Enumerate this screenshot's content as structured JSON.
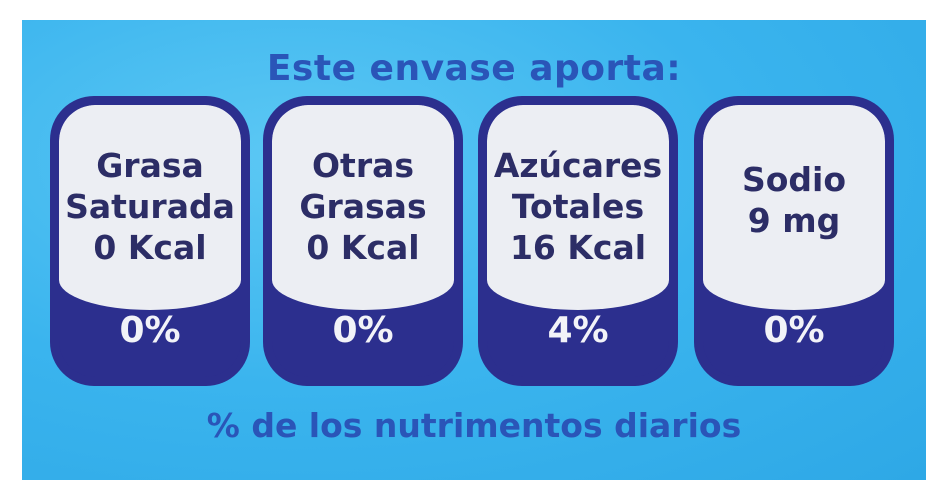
{
  "title": "Este envase aporta:",
  "cards": [
    {
      "lines": [
        "Grasa",
        "Saturada",
        "0 Kcal"
      ],
      "percent": "0%"
    },
    {
      "lines": [
        "Otras",
        "Grasas",
        "0 Kcal"
      ],
      "percent": "0%"
    },
    {
      "lines": [
        "Azúcares",
        "Totales",
        "16 Kcal"
      ],
      "percent": "4%"
    },
    {
      "lines": [
        "Sodio",
        "9 mg",
        ""
      ],
      "percent": "0%"
    }
  ],
  "footer": "% de los nutrimentos diarios",
  "colors": {
    "background": "#3ab4ee",
    "card_navy": "#2c2f8e",
    "text_blue": "#2a55b8"
  }
}
